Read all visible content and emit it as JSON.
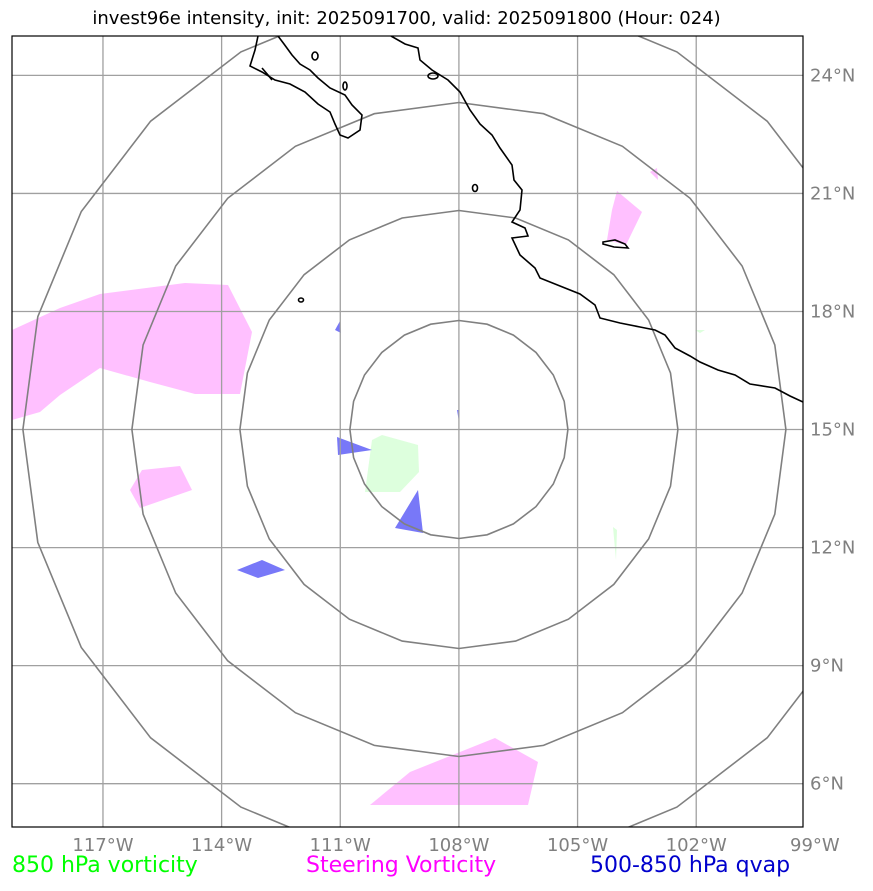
{
  "title": "invest96e intensity, init: 2025091700, valid: 2025091800 (Hour: 024)",
  "map": {
    "lon_range": [
      -119.3,
      -99.3
    ],
    "lat_range": [
      4.9,
      25.0
    ],
    "center": {
      "lon": -108.0,
      "lat": 15.0
    },
    "range_ring_count": 4,
    "gridlines": true,
    "lon_ticks": [
      {
        "value": -117,
        "label": "117°W"
      },
      {
        "value": -114,
        "label": "114°W"
      },
      {
        "value": -111,
        "label": "111°W"
      },
      {
        "value": -108,
        "label": "108°W"
      },
      {
        "value": -105,
        "label": "105°W"
      },
      {
        "value": -102,
        "label": "102°W"
      },
      {
        "value": -99,
        "label": "99°W"
      }
    ],
    "lat_ticks": [
      {
        "value": 24,
        "label": "24°N"
      },
      {
        "value": 21,
        "label": "21°N"
      },
      {
        "value": 18,
        "label": "18°N"
      },
      {
        "value": 15,
        "label": "15°N"
      },
      {
        "value": 12,
        "label": "12°N"
      },
      {
        "value": 9,
        "label": "9°N"
      },
      {
        "value": 6,
        "label": "6°N"
      }
    ],
    "colors": {
      "vort850": "#ddffdd",
      "steering": "#ffc0ff",
      "qvap": "#7878f8",
      "ring": "#808080",
      "grid": "#a0a0a0",
      "coast": "#000000"
    }
  },
  "legend": {
    "vort850": {
      "label": "850 hPa vorticity",
      "color": "#00ff00"
    },
    "steering": {
      "label": "Steering Vorticity",
      "color": "#ff00ff"
    },
    "qvap": {
      "label": "500-850 hPa qvap",
      "color": "#0000cc"
    }
  }
}
